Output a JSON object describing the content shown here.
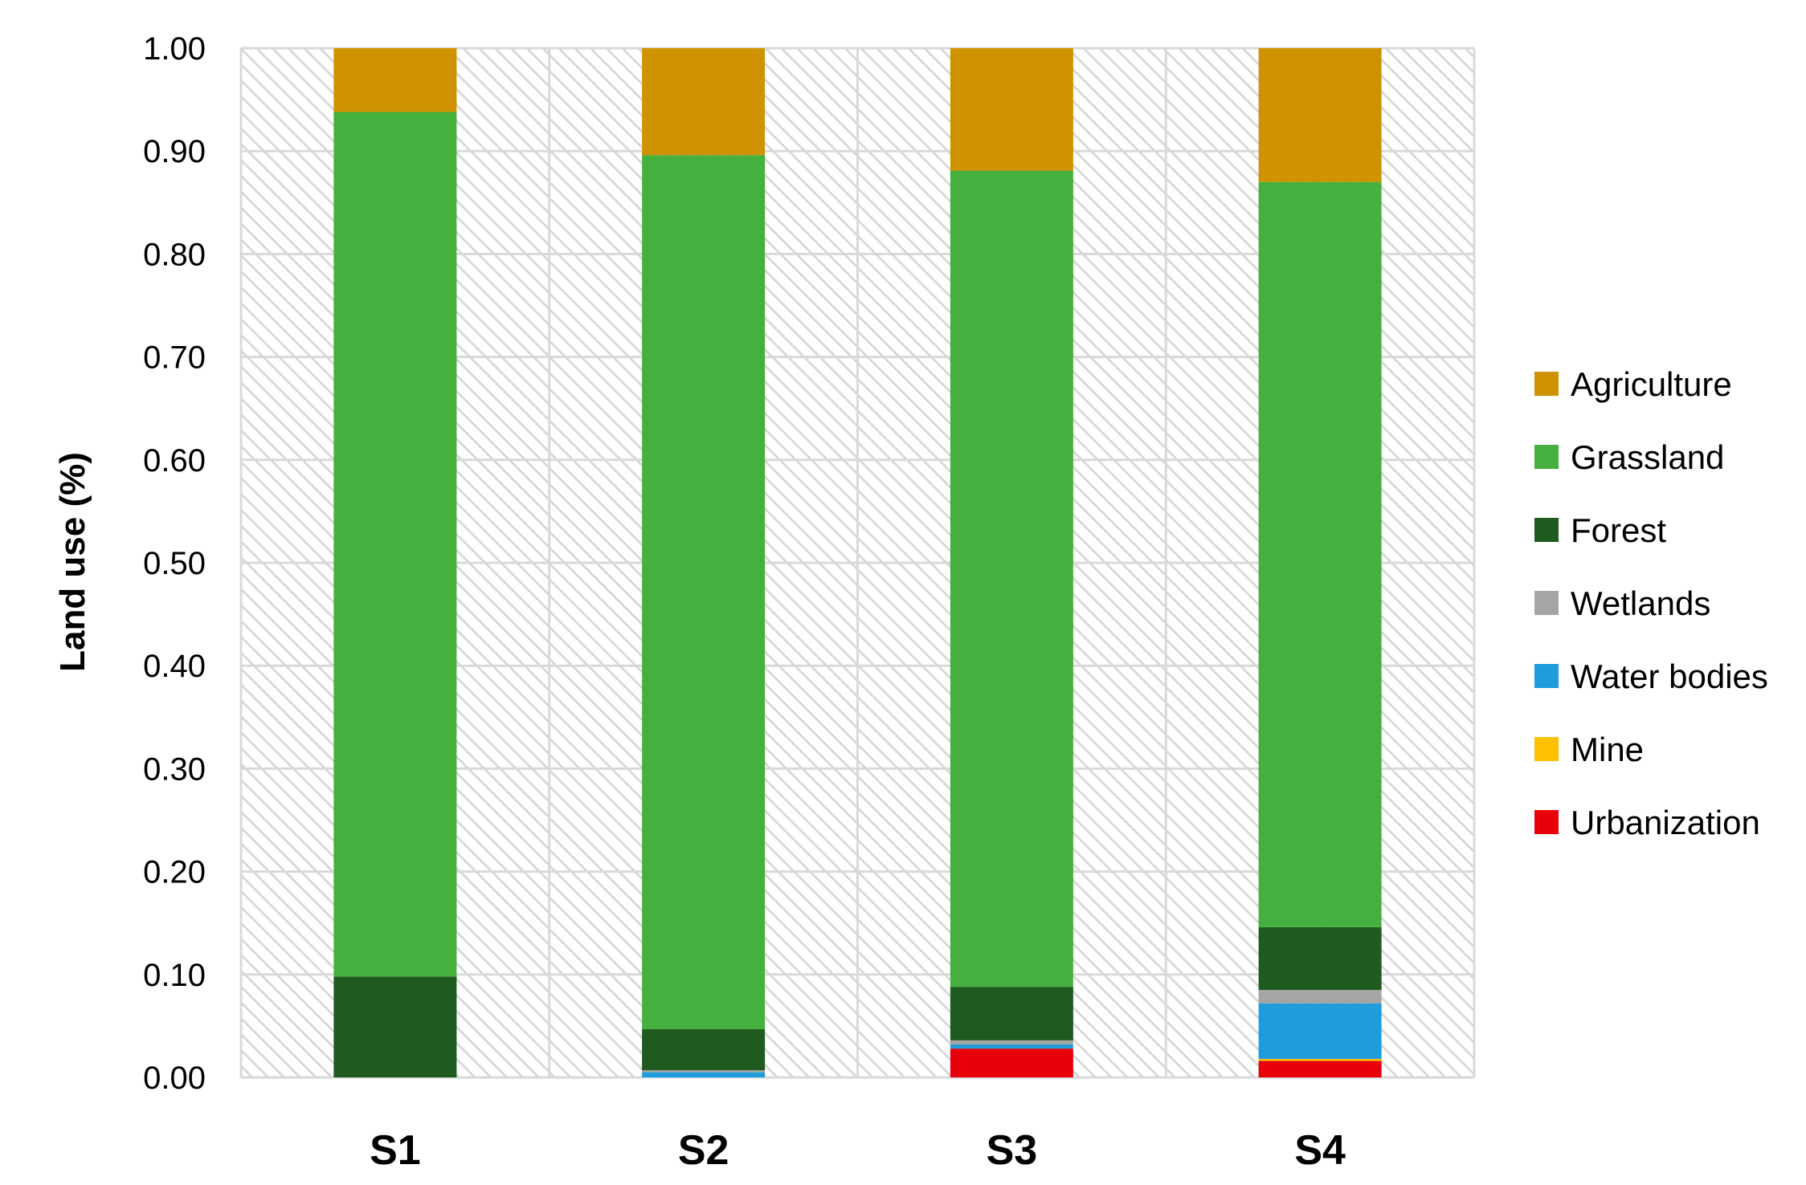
{
  "chart_data": {
    "type": "bar",
    "stacked": true,
    "title": "",
    "xlabel": "",
    "ylabel": "Land use (%)",
    "ylim": [
      0,
      1
    ],
    "yticks": [
      "0.00",
      "0.10",
      "0.20",
      "0.30",
      "0.40",
      "0.50",
      "0.60",
      "0.70",
      "0.80",
      "0.90",
      "1.00"
    ],
    "categories": [
      "S1",
      "S2",
      "S3",
      "S4"
    ],
    "grid": true,
    "legend_position": "right",
    "plot_background": "diagonal hatch",
    "series": [
      {
        "name": "Urbanization",
        "color": "#e8000b",
        "values": [
          0.0,
          0.0,
          0.028,
          0.016
        ]
      },
      {
        "name": "Mine",
        "color": "#ffc000",
        "values": [
          0.0,
          0.0,
          0.0,
          0.002
        ]
      },
      {
        "name": "Water bodies",
        "color": "#1e9cdc",
        "values": [
          0.0,
          0.005,
          0.004,
          0.054
        ]
      },
      {
        "name": "Wetlands",
        "color": "#a5a5a5",
        "values": [
          0.0,
          0.002,
          0.004,
          0.013
        ]
      },
      {
        "name": "Forest",
        "color": "#1f5a1e",
        "values": [
          0.098,
          0.04,
          0.052,
          0.061
        ]
      },
      {
        "name": "Grassland",
        "color": "#45b03e",
        "values": [
          0.84,
          0.849,
          0.793,
          0.724
        ]
      },
      {
        "name": "Agriculture",
        "color": "#cf9200",
        "values": [
          0.062,
          0.104,
          0.119,
          0.13
        ]
      }
    ],
    "legend_order": [
      "Agriculture",
      "Grassland",
      "Forest",
      "Wetlands",
      "Water bodies",
      "Mine",
      "Urbanization"
    ]
  }
}
